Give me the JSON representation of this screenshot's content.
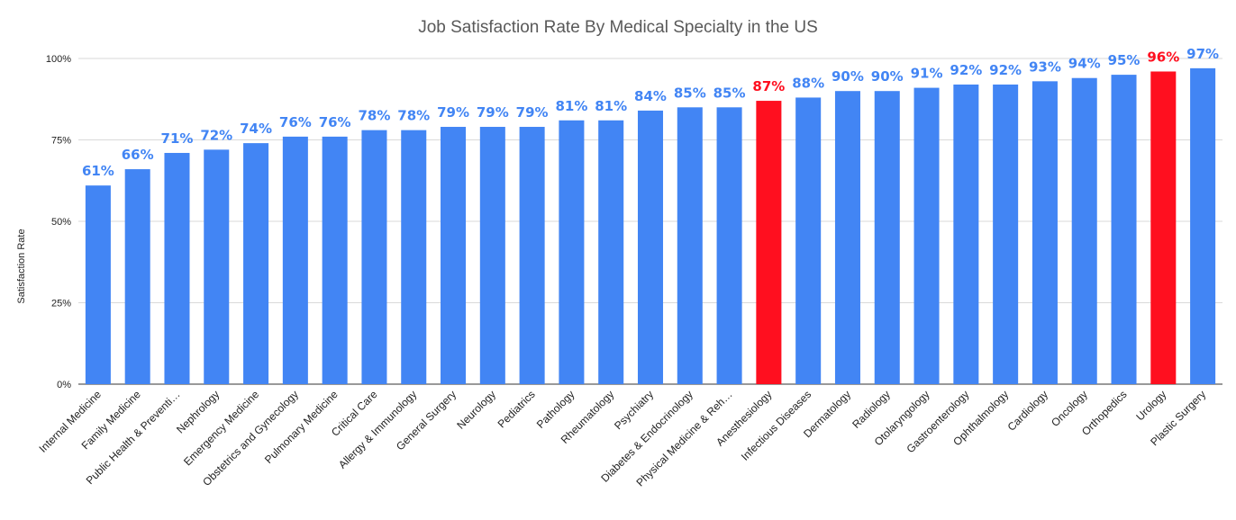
{
  "chart_data": {
    "type": "bar",
    "title": "Job Satisfaction Rate By Medical Specialty in the US",
    "xlabel": "",
    "ylabel": "Satisfaction Rate",
    "ylim": [
      0,
      100
    ],
    "yticks": [
      {
        "value": 0,
        "label": "0%"
      },
      {
        "value": 25,
        "label": "25%"
      },
      {
        "value": 50,
        "label": "50%"
      },
      {
        "value": 75,
        "label": "75%"
      },
      {
        "value": 100,
        "label": "100%"
      }
    ],
    "grid": true,
    "colors": {
      "default": "#4285f4",
      "highlight": "#ff0f1f",
      "label_default": "#4285f4",
      "label_highlight": "#ff0f1f"
    },
    "categories": [
      "Internal Medicine",
      "Family Medicine",
      "Public Health & Preventi…",
      "Nephrology",
      "Emergency Medicine",
      "Obstetrics and Gynecology",
      "Pulmonary Medicine",
      "Critical Care",
      "Allergy & Immunology",
      "General Surgery",
      "Neurology",
      "Pediatrics",
      "Pathology",
      "Rheumatology",
      "Psychiatry",
      "Diabetes & Endocrinology",
      "Physical Medicine & Reh…",
      "Anesthesiology",
      "Infectious Diseases",
      "Dermatology",
      "Radiology",
      "Otolaryngology",
      "Gastroenterology",
      "Ophthalmology",
      "Cardiology",
      "Oncology",
      "Orthopedics",
      "Urology",
      "Plastic Surgery"
    ],
    "values": [
      61,
      66,
      71,
      72,
      74,
      76,
      76,
      78,
      78,
      79,
      79,
      79,
      81,
      81,
      84,
      85,
      85,
      87,
      88,
      90,
      90,
      91,
      92,
      92,
      93,
      94,
      95,
      96,
      97
    ],
    "data_labels": [
      "61%",
      "66%",
      "71%",
      "72%",
      "74%",
      "76%",
      "76%",
      "78%",
      "78%",
      "79%",
      "79%",
      "79%",
      "81%",
      "81%",
      "84%",
      "85%",
      "85%",
      "87%",
      "88%",
      "90%",
      "90%",
      "91%",
      "92%",
      "92%",
      "93%",
      "94%",
      "95%",
      "96%",
      "97%"
    ],
    "highlighted": [
      "Anesthesiology",
      "Urology"
    ]
  }
}
